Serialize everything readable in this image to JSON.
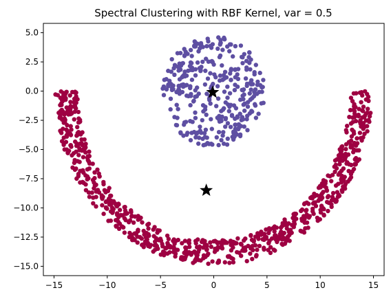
{
  "chart_data": {
    "type": "scatter",
    "title": "Spectral Clustering with RBF Kernel, var = 0.5",
    "xlabel": "",
    "ylabel": "",
    "xlim": [
      -16.0,
      16.0
    ],
    "ylim": [
      -15.8,
      5.8
    ],
    "x_ticks": [
      -15,
      -10,
      -5,
      0,
      5,
      10,
      15
    ],
    "x_tick_labels": [
      "−15",
      "−10",
      "−5",
      "0",
      "5",
      "10",
      "15"
    ],
    "y_ticks": [
      5.0,
      2.5,
      0.0,
      -2.5,
      -5.0,
      -7.5,
      -10.0,
      -12.5,
      -15.0
    ],
    "y_tick_labels": [
      "5.0",
      "2.5",
      "0.0",
      "−2.5",
      "−5.0",
      "−7.5",
      "−10.0",
      "−12.5",
      "−15.0"
    ],
    "grid": false,
    "legend": "none",
    "clusters": [
      {
        "color": "#5e4fa2",
        "shape": "disk",
        "center": [
          0,
          0
        ],
        "radius": 4.8,
        "approx_points": 350
      },
      {
        "color": "#9e0142",
        "shape": "arc",
        "arc_center": [
          0,
          0
        ],
        "inner_radius": 12.8,
        "outer_radius": 14.9,
        "angle_range_deg": [
          180,
          360
        ],
        "approx_points": 800
      }
    ],
    "centroids": [
      {
        "x": -0.1,
        "y": -0.1,
        "marker": "star",
        "color": "#000000"
      },
      {
        "x": -0.7,
        "y": -8.5,
        "marker": "star",
        "color": "#000000"
      }
    ]
  }
}
